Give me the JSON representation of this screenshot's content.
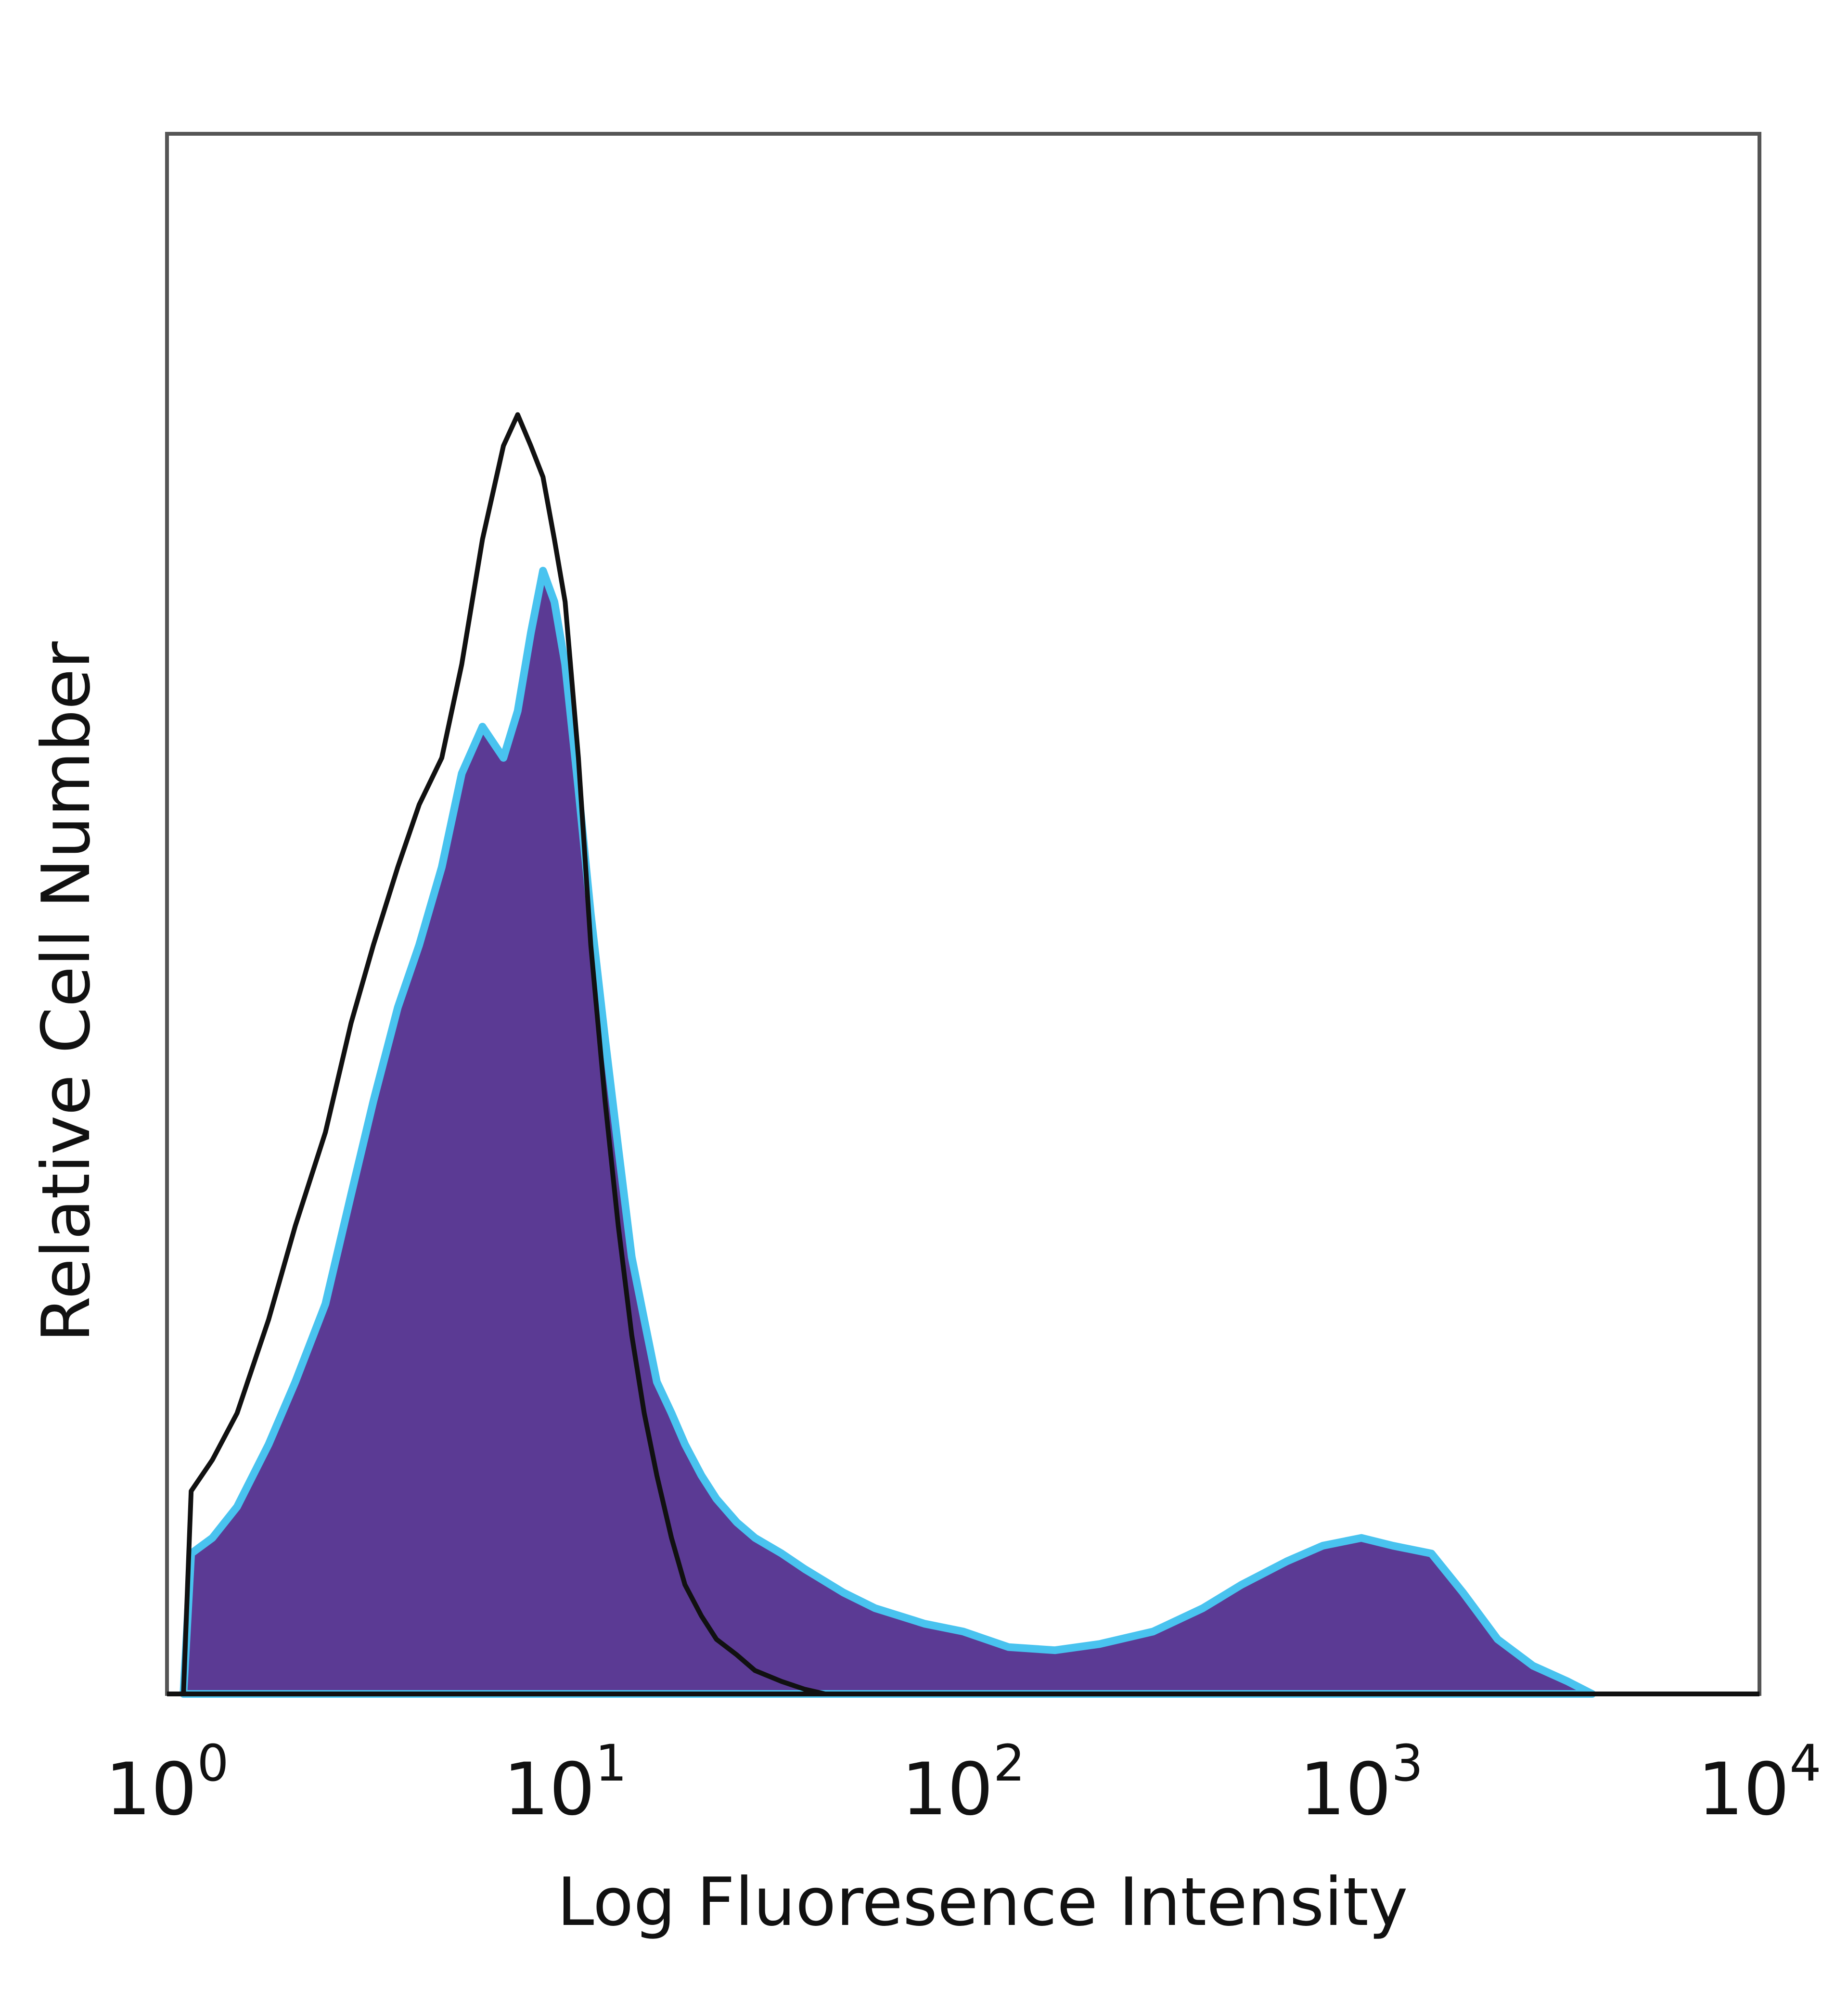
{
  "chart_data": {
    "type": "area",
    "title": "",
    "xlabel": "Log Fluoresence Intensity",
    "ylabel": "Relative Cell Number",
    "xscale": "log",
    "xlim": [
      1,
      10000
    ],
    "ylim": [
      0,
      100
    ],
    "grid": false,
    "legend": "none",
    "x_ticks": [
      {
        "value": 1,
        "base": "10",
        "exp": "0"
      },
      {
        "value": 10,
        "base": "10",
        "exp": "1"
      },
      {
        "value": 100,
        "base": "10",
        "exp": "2"
      },
      {
        "value": 1000,
        "base": "10",
        "exp": "3"
      },
      {
        "value": 10000,
        "base": "10",
        "exp": "4"
      }
    ],
    "series": [
      {
        "style": "filled",
        "fill_color": "#5b3a94",
        "edge_color": "#49c3ef",
        "x": [
          1.1,
          1.15,
          1.3,
          1.5,
          1.8,
          2.1,
          2.5,
          2.9,
          3.3,
          3.8,
          4.3,
          4.9,
          5.5,
          6.2,
          7.0,
          7.6,
          8.2,
          8.8,
          9.4,
          10.0,
          10.8,
          11.6,
          12.6,
          13.6,
          14.7,
          15.8,
          17.0,
          18.5,
          20.0,
          22.0,
          24.0,
          27.0,
          30.0,
          35.0,
          40.0,
          50.0,
          60.0,
          80.0,
          100.0,
          130.0,
          170.0,
          220.0,
          300.0,
          400.0,
          500.0,
          650.0,
          800.0,
          1000.0,
          1200.0,
          1500.0,
          1800.0,
          2200.0,
          2700.0,
          3300.0,
          3800.0
        ],
        "y": [
          0,
          9,
          10,
          12,
          16,
          20,
          25,
          32,
          38,
          44,
          48,
          53,
          59,
          62,
          60,
          63,
          68,
          72,
          70,
          66,
          58,
          50,
          42,
          35,
          28,
          24,
          20,
          18,
          16,
          14,
          12.5,
          11,
          10,
          9,
          8,
          6.5,
          5.5,
          4.5,
          4.0,
          3.0,
          2.8,
          3.2,
          4.0,
          5.5,
          7.0,
          8.5,
          9.5,
          10,
          9.5,
          9.0,
          6.5,
          3.5,
          1.8,
          0.8,
          0
        ]
      },
      {
        "style": "line",
        "line_color": "#111111",
        "x": [
          1.1,
          1.15,
          1.3,
          1.5,
          1.8,
          2.1,
          2.5,
          2.9,
          3.3,
          3.8,
          4.3,
          4.9,
          5.5,
          6.2,
          7.0,
          7.6,
          8.2,
          8.8,
          9.4,
          10.0,
          10.8,
          11.6,
          12.6,
          13.6,
          14.7,
          15.8,
          17.0,
          18.5,
          20.0,
          22.0,
          24.0,
          27.0,
          30.0,
          35.0,
          40.0,
          45.0
        ],
        "y": [
          0,
          13,
          15,
          18,
          24,
          30,
          36,
          43,
          48,
          53,
          57,
          60,
          66,
          74,
          80,
          82,
          80,
          78,
          74,
          70,
          60,
          48,
          38,
          30,
          23,
          18,
          14,
          10,
          7,
          5,
          3.5,
          2.5,
          1.5,
          0.8,
          0.3,
          0
        ]
      }
    ]
  }
}
